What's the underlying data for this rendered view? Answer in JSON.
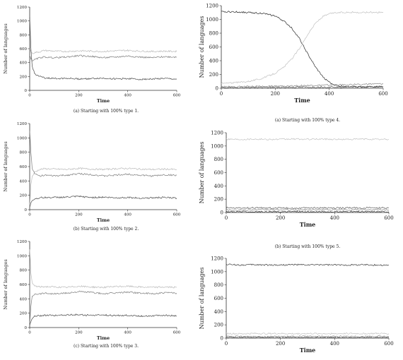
{
  "chart_data": [
    {
      "type": "line",
      "caption": "(a) Starting with 100% type 1.",
      "xlabel": "Time",
      "ylabel": "Number of languages",
      "xlim": [
        0,
        600
      ],
      "ylim": [
        0,
        1200
      ],
      "xticks": [
        0,
        200,
        400,
        600
      ],
      "yticks": [
        0,
        200,
        400,
        600,
        800,
        1000,
        1200
      ],
      "series": [
        {
          "color": "#b8b8b8",
          "x": [
            0,
            5,
            10,
            20,
            40,
            60,
            100,
            150,
            200,
            250,
            300,
            350,
            400,
            450,
            500,
            550,
            600
          ],
          "values": [
            600,
            560,
            530,
            545,
            555,
            575,
            565,
            560,
            570,
            565,
            560,
            570,
            575,
            565,
            560,
            565,
            560
          ]
        },
        {
          "color": "#7a7a7a",
          "x": [
            0,
            5,
            10,
            20,
            40,
            60,
            100,
            150,
            200,
            250,
            300,
            350,
            400,
            450,
            500,
            550,
            600
          ],
          "values": [
            500,
            460,
            430,
            440,
            470,
            480,
            470,
            480,
            500,
            490,
            470,
            480,
            495,
            480,
            470,
            485,
            480
          ]
        },
        {
          "color": "#4a4a4a",
          "x": [
            0,
            5,
            10,
            20,
            40,
            60,
            100,
            150,
            200,
            250,
            300,
            350,
            400,
            450,
            500,
            550,
            600
          ],
          "values": [
            1050,
            600,
            350,
            240,
            200,
            180,
            170,
            175,
            165,
            170,
            175,
            165,
            170,
            160,
            165,
            170,
            160
          ]
        }
      ]
    },
    {
      "type": "line",
      "caption": "(b) Starting with 100% type 2.",
      "xlabel": "Time",
      "ylabel": "Number of languages",
      "xlim": [
        0,
        600
      ],
      "ylim": [
        0,
        1200
      ],
      "xticks": [
        0,
        200,
        400,
        600
      ],
      "yticks": [
        0,
        200,
        400,
        600,
        800,
        1000,
        1200
      ],
      "series": [
        {
          "color": "#b8b8b8",
          "x": [
            0,
            5,
            10,
            20,
            40,
            60,
            100,
            150,
            200,
            250,
            300,
            350,
            400,
            450,
            500,
            550,
            600
          ],
          "values": [
            50,
            350,
            460,
            520,
            560,
            570,
            565,
            560,
            575,
            565,
            560,
            570,
            575,
            565,
            560,
            565,
            560
          ]
        },
        {
          "color": "#7a7a7a",
          "x": [
            0,
            5,
            10,
            20,
            40,
            60,
            100,
            150,
            200,
            250,
            300,
            350,
            400,
            450,
            500,
            550,
            600
          ],
          "values": [
            1100,
            800,
            580,
            500,
            470,
            480,
            470,
            480,
            500,
            490,
            470,
            480,
            495,
            480,
            470,
            485,
            480
          ]
        },
        {
          "color": "#4a4a4a",
          "x": [
            0,
            5,
            10,
            20,
            40,
            60,
            100,
            150,
            200,
            250,
            300,
            350,
            400,
            450,
            500,
            550,
            600
          ],
          "values": [
            30,
            90,
            130,
            150,
            165,
            170,
            170,
            175,
            185,
            170,
            175,
            165,
            170,
            160,
            165,
            170,
            160
          ]
        }
      ]
    },
    {
      "type": "line",
      "caption": "(c) Starting with 100% type 3.",
      "xlabel": "Time",
      "ylabel": "Number of languages",
      "xlim": [
        0,
        600
      ],
      "ylim": [
        0,
        1200
      ],
      "xticks": [
        0,
        200,
        400,
        600
      ],
      "yticks": [
        0,
        200,
        400,
        600,
        800,
        1000,
        1200
      ],
      "series": [
        {
          "color": "#b8b8b8",
          "x": [
            0,
            5,
            10,
            20,
            40,
            60,
            100,
            150,
            200,
            250,
            300,
            350,
            400,
            450,
            500,
            550,
            600
          ],
          "values": [
            1100,
            750,
            620,
            580,
            565,
            570,
            565,
            560,
            575,
            565,
            560,
            570,
            575,
            565,
            560,
            565,
            560
          ]
        },
        {
          "color": "#7a7a7a",
          "x": [
            0,
            5,
            10,
            20,
            40,
            60,
            100,
            150,
            200,
            250,
            300,
            350,
            400,
            450,
            500,
            550,
            600
          ],
          "values": [
            50,
            300,
            430,
            470,
            470,
            480,
            470,
            480,
            500,
            490,
            470,
            480,
            495,
            480,
            470,
            485,
            480
          ]
        },
        {
          "color": "#4a4a4a",
          "x": [
            0,
            5,
            10,
            20,
            40,
            60,
            100,
            150,
            200,
            250,
            300,
            350,
            400,
            450,
            500,
            550,
            600
          ],
          "values": [
            30,
            90,
            130,
            155,
            165,
            170,
            170,
            175,
            180,
            170,
            175,
            165,
            170,
            160,
            165,
            170,
            160
          ]
        }
      ]
    },
    {
      "type": "line",
      "caption": "(a) Starting with 100% type 4.",
      "xlabel": "Time",
      "ylabel": "Number of languages",
      "xlim": [
        0,
        600
      ],
      "ylim": [
        0,
        1200
      ],
      "xticks": [
        0,
        200,
        400,
        600
      ],
      "yticks": [
        0,
        200,
        400,
        600,
        800,
        1000,
        1200
      ],
      "series": [
        {
          "color": "#2a2a2a",
          "x": [
            0,
            50,
            100,
            150,
            200,
            230,
            260,
            290,
            320,
            350,
            380,
            410,
            440,
            480,
            520,
            560,
            600
          ],
          "values": [
            1110,
            1110,
            1100,
            1090,
            1050,
            980,
            880,
            720,
            500,
            300,
            150,
            60,
            30,
            25,
            20,
            22,
            20
          ]
        },
        {
          "color": "#c0c0c0",
          "x": [
            0,
            50,
            100,
            150,
            200,
            230,
            260,
            290,
            320,
            350,
            380,
            410,
            440,
            480,
            520,
            560,
            600
          ],
          "values": [
            70,
            80,
            100,
            140,
            220,
            300,
            420,
            580,
            780,
            950,
            1050,
            1090,
            1100,
            1105,
            1100,
            1105,
            1100
          ]
        },
        {
          "color": "#8a8a8a",
          "x": [
            0,
            50,
            100,
            150,
            200,
            250,
            300,
            350,
            400,
            450,
            500,
            550,
            600
          ],
          "values": [
            20,
            22,
            25,
            28,
            30,
            35,
            38,
            40,
            45,
            50,
            55,
            60,
            62
          ]
        },
        {
          "color": "#5a5a5a",
          "x": [
            0,
            50,
            100,
            150,
            200,
            250,
            300,
            350,
            400,
            450,
            500,
            550,
            600
          ],
          "values": [
            10,
            12,
            12,
            13,
            14,
            15,
            15,
            16,
            18,
            20,
            22,
            22,
            24
          ]
        }
      ]
    },
    {
      "type": "line",
      "caption": "(b) Starting with 100% type 5.",
      "xlabel": "Time",
      "ylabel": "Number of languages",
      "xlim": [
        0,
        600
      ],
      "ylim": [
        0,
        1200
      ],
      "xticks": [
        0,
        200,
        400,
        600
      ],
      "yticks": [
        0,
        200,
        400,
        600,
        800,
        1000,
        1200
      ],
      "series": [
        {
          "color": "#c0c0c0",
          "x": [
            0,
            50,
            100,
            150,
            200,
            250,
            300,
            350,
            400,
            450,
            500,
            550,
            600
          ],
          "values": [
            1105,
            1100,
            1105,
            1100,
            1100,
            1105,
            1100,
            1105,
            1100,
            1100,
            1105,
            1100,
            1100
          ]
        },
        {
          "color": "#5a5a5a",
          "x": [
            0,
            50,
            100,
            150,
            200,
            250,
            300,
            350,
            400,
            450,
            500,
            550,
            600
          ],
          "values": [
            70,
            65,
            70,
            68,
            70,
            65,
            70,
            68,
            66,
            70,
            68,
            70,
            68
          ]
        },
        {
          "color": "#8a8a8a",
          "x": [
            0,
            50,
            100,
            150,
            200,
            250,
            300,
            350,
            400,
            450,
            500,
            550,
            600
          ],
          "values": [
            40,
            38,
            40,
            42,
            40,
            38,
            40,
            42,
            40,
            38,
            40,
            42,
            40
          ]
        },
        {
          "color": "#3a3a3a",
          "x": [
            0,
            50,
            100,
            150,
            200,
            250,
            300,
            350,
            400,
            450,
            500,
            550,
            600
          ],
          "values": [
            10,
            12,
            10,
            11,
            10,
            12,
            10,
            11,
            10,
            12,
            10,
            11,
            10
          ]
        }
      ]
    },
    {
      "type": "line",
      "caption": "",
      "xlabel": "Time",
      "ylabel": "Number of languages",
      "xlim": [
        0,
        600
      ],
      "ylim": [
        0,
        1200
      ],
      "xticks": [
        0,
        200,
        400,
        600
      ],
      "yticks": [
        0,
        200,
        400,
        600,
        800,
        1000,
        1200
      ],
      "series": [
        {
          "color": "#3a3a3a",
          "x": [
            0,
            50,
            100,
            150,
            200,
            250,
            300,
            350,
            400,
            450,
            500,
            550,
            600
          ],
          "values": [
            1110,
            1100,
            1105,
            1100,
            1100,
            1105,
            1100,
            1105,
            1100,
            1100,
            1105,
            1100,
            1095
          ]
        },
        {
          "color": "#c0c0c0",
          "x": [
            0,
            50,
            100,
            150,
            200,
            250,
            300,
            350,
            400,
            450,
            500,
            550,
            600
          ],
          "values": [
            70,
            65,
            70,
            68,
            70,
            65,
            70,
            68,
            66,
            70,
            68,
            70,
            68
          ]
        },
        {
          "color": "#8a8a8a",
          "x": [
            0,
            50,
            100,
            150,
            200,
            250,
            300,
            350,
            400,
            450,
            500,
            550,
            600
          ],
          "values": [
            25,
            24,
            25,
            26,
            25,
            24,
            25,
            26,
            25,
            24,
            25,
            26,
            25
          ]
        },
        {
          "color": "#5a5a5a",
          "x": [
            0,
            50,
            100,
            150,
            200,
            250,
            300,
            350,
            400,
            450,
            500,
            550,
            600
          ],
          "values": [
            8,
            9,
            8,
            9,
            8,
            9,
            8,
            9,
            8,
            9,
            8,
            9,
            8
          ]
        }
      ]
    }
  ]
}
